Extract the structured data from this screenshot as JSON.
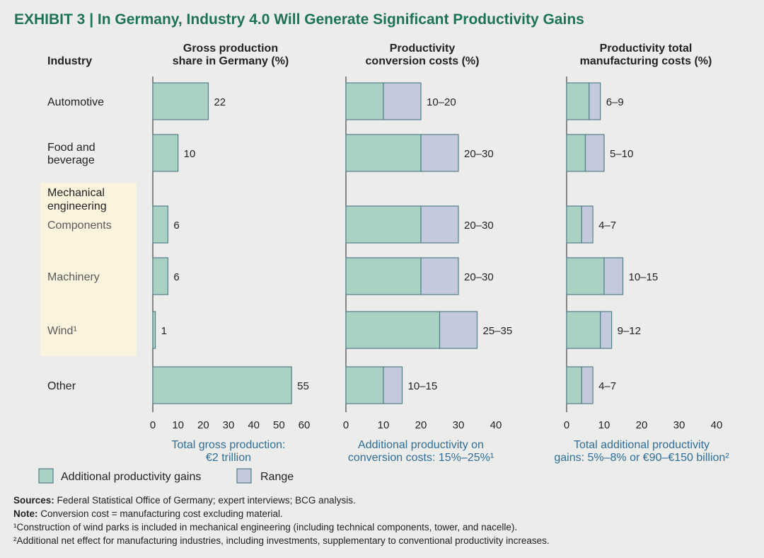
{
  "title": {
    "exhibit": "EXHIBIT 3",
    "text": "In Germany, Industry 4.0 Will Generate Significant Productivity Gains"
  },
  "colors": {
    "gain": "#a9d2c2",
    "range": "#c3cade",
    "stroke": "#557f8c",
    "title": "#1e7356",
    "highlight": "#fcf3df",
    "footer": "#2e6e98"
  },
  "chart_data": {
    "type": "bar",
    "industry_header": "Industry",
    "categories": [
      {
        "label": [
          "Automotive"
        ],
        "group": null
      },
      {
        "label": [
          "Food and",
          "beverage"
        ],
        "group": null
      },
      {
        "label": [
          "Components"
        ],
        "group": "Mechanical engineering"
      },
      {
        "label": [
          "Machinery"
        ],
        "group": "Mechanical engineering"
      },
      {
        "label": [
          "Wind¹"
        ],
        "group": "Mechanical engineering"
      },
      {
        "label": [
          "Other"
        ],
        "group": null
      }
    ],
    "group_label": [
      "Mechanical",
      "engineering"
    ],
    "panels": [
      {
        "title": [
          "Gross production",
          "share in Germany (%)"
        ],
        "xlim": [
          0,
          60
        ],
        "ticks": [
          0,
          10,
          20,
          30,
          40,
          50,
          60
        ],
        "values": [
          22,
          10,
          6,
          6,
          1,
          55
        ],
        "labels": [
          "22",
          "10",
          "6",
          "6",
          "1",
          "55"
        ],
        "footer": [
          "Total gross production:",
          "€2 trillion"
        ]
      },
      {
        "title": [
          "Productivity",
          "conversion costs (%)"
        ],
        "xlim": [
          0,
          40
        ],
        "ticks": [
          0,
          10,
          20,
          30,
          40
        ],
        "ranges": [
          [
            10,
            20
          ],
          [
            20,
            30
          ],
          [
            20,
            30
          ],
          [
            20,
            30
          ],
          [
            25,
            35
          ],
          [
            10,
            15
          ]
        ],
        "labels": [
          "10–20",
          "20–30",
          "20–30",
          "20–30",
          "25–35",
          "10–15"
        ],
        "footer": [
          "Additional productivity on",
          "conversion costs: 15%–25%¹"
        ]
      },
      {
        "title": [
          "Productivity total",
          "manufacturing costs (%)"
        ],
        "xlim": [
          0,
          40
        ],
        "ticks": [
          0,
          10,
          20,
          30,
          40
        ],
        "ranges": [
          [
            6,
            9
          ],
          [
            5,
            10
          ],
          [
            4,
            7
          ],
          [
            10,
            15
          ],
          [
            9,
            12
          ],
          [
            4,
            7
          ]
        ],
        "labels": [
          "6–9",
          "5–10",
          "4–7",
          "10–15",
          "9–12",
          "4–7"
        ],
        "footer": [
          "Total additional productivity",
          "gains: 5%–8% or €90–€150 billion²"
        ]
      }
    ],
    "legend": [
      {
        "name": "Additional productivity gains",
        "key": "gain"
      },
      {
        "name": "Range",
        "key": "range"
      }
    ]
  },
  "notes": [
    {
      "bold": "Sources:",
      "text": " Federal Statistical Office of Germany; expert interviews; BCG analysis."
    },
    {
      "bold": "Note:",
      "text": " Conversion cost = manufacturing cost excluding material."
    },
    {
      "bold": "",
      "text": "¹Construction of wind parks is included in mechanical engineering (including technical components, tower, and nacelle)."
    },
    {
      "bold": "",
      "text": "²Additional net effect for manufacturing industries, including investments, supplementary to conventional productivity increases."
    }
  ]
}
